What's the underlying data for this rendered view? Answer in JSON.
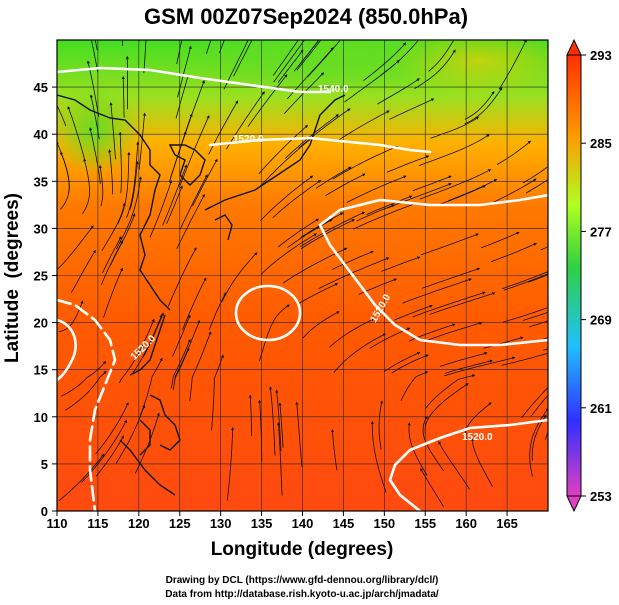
{
  "title": "GSM 00Z07Sep2024 (850.0hPa)",
  "x_axis": {
    "label": "Longitude (degrees)",
    "ticks": [
      "110",
      "115",
      "120",
      "125",
      "130",
      "135",
      "140",
      "145",
      "150",
      "155",
      "160",
      "165"
    ]
  },
  "y_axis": {
    "label": "Latitude  (degrees)",
    "ticks": [
      "0",
      "5",
      "10",
      "15",
      "20",
      "25",
      "30",
      "35",
      "40",
      "45"
    ]
  },
  "colorbar": {
    "ticks": [
      "253",
      "261",
      "269",
      "277",
      "285",
      "293"
    ],
    "colors": [
      "#e040c0",
      "#3030ff",
      "#20c0ff",
      "#30d040",
      "#b0ff20",
      "#ff9900",
      "#ff3000"
    ]
  },
  "contour_labels": [
    "1520.0",
    "1520.0",
    "1520.0",
    "1520.0",
    "1540.0"
  ],
  "credits": {
    "line1": "Drawing by DCL (https://www.gfd-dennou.org/library/dcl/)",
    "line2": "Data from http://database.rish.kyoto-u.ac.jp/arch/jmadata/"
  },
  "map_extent": {
    "lon": [
      110,
      170
    ],
    "lat": [
      0,
      50
    ]
  }
}
